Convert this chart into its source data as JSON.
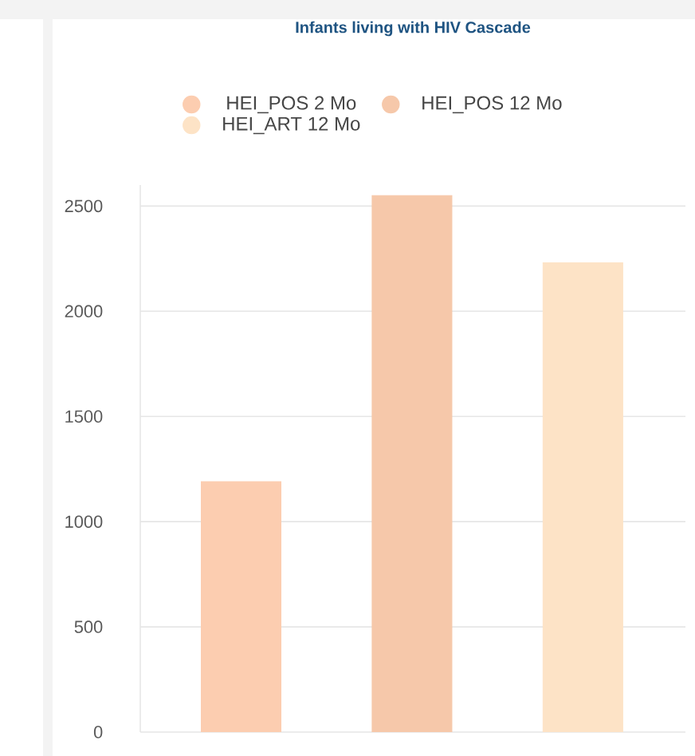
{
  "chart_data": {
    "type": "bar",
    "title": "Infants living with HIV Cascade",
    "categories": [
      null,
      null,
      null
    ],
    "series": [
      {
        "name": "HEI_POS 2 Mo",
        "color": "#fccdb0",
        "values": [
          1190,
          null,
          null
        ]
      },
      {
        "name": "HEI_POS 12 Mo",
        "color": "#f6c8aa",
        "values": [
          null,
          2550,
          null
        ]
      },
      {
        "name": "HEI_ART 12 Mo",
        "color": "#fde3c6",
        "values": [
          null,
          null,
          2230
        ]
      }
    ],
    "ylim": [
      0,
      2600
    ],
    "yticks": [
      0,
      500,
      1000,
      1500,
      2000,
      2500
    ],
    "grid": "y",
    "legend": "top"
  }
}
